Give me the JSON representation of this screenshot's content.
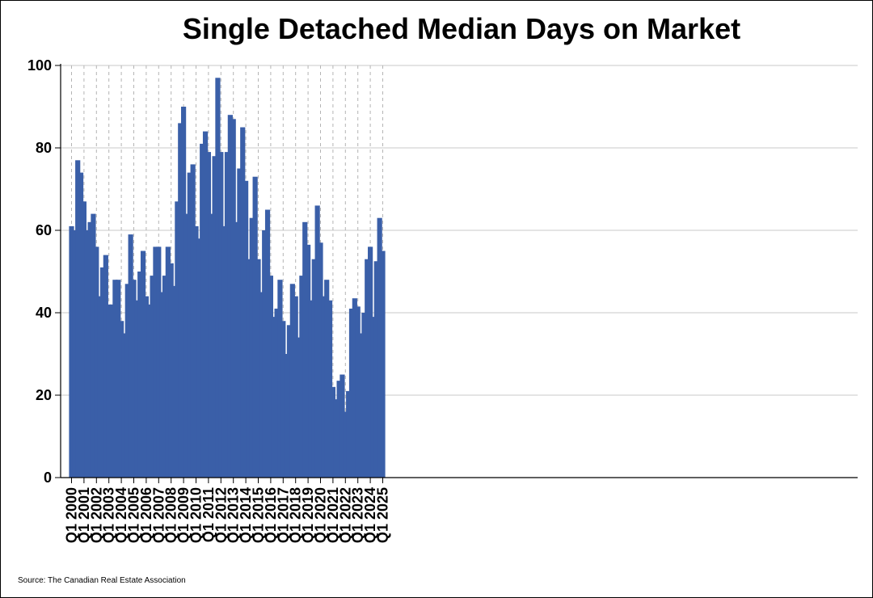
{
  "chart_data": {
    "type": "bar",
    "title": "Single Detached Median Days on Market",
    "xlabel": "",
    "ylabel": "",
    "ylim": [
      0,
      100
    ],
    "yticks": [
      0,
      20,
      40,
      60,
      80,
      100
    ],
    "grid": true,
    "bar_color": "#3a5fa8",
    "categories": [
      "Q1 2000",
      "Q2 2000",
      "Q3 2000",
      "Q4 2000",
      "Q1 2001",
      "Q2 2001",
      "Q3 2001",
      "Q4 2001",
      "Q1 2002",
      "Q2 2002",
      "Q3 2002",
      "Q4 2002",
      "Q1 2003",
      "Q2 2003",
      "Q3 2003",
      "Q4 2003",
      "Q1 2004",
      "Q2 2004",
      "Q3 2004",
      "Q4 2004",
      "Q1 2005",
      "Q2 2005",
      "Q3 2005",
      "Q4 2005",
      "Q1 2006",
      "Q2 2006",
      "Q3 2006",
      "Q4 2006",
      "Q1 2007",
      "Q2 2007",
      "Q3 2007",
      "Q4 2007",
      "Q1 2008",
      "Q2 2008",
      "Q3 2008",
      "Q4 2008",
      "Q1 2009",
      "Q2 2009",
      "Q3 2009",
      "Q4 2009",
      "Q1 2010",
      "Q2 2010",
      "Q3 2010",
      "Q4 2010",
      "Q1 2011",
      "Q2 2011",
      "Q3 2011",
      "Q4 2011",
      "Q1 2012",
      "Q2 2012",
      "Q3 2012",
      "Q4 2012",
      "Q1 2013",
      "Q2 2013",
      "Q3 2013",
      "Q4 2013",
      "Q1 2014",
      "Q2 2014",
      "Q3 2014",
      "Q4 2014",
      "Q1 2015",
      "Q2 2015",
      "Q3 2015",
      "Q4 2015",
      "Q1 2016",
      "Q2 2016",
      "Q3 2016",
      "Q4 2016",
      "Q1 2017",
      "Q2 2017",
      "Q3 2017",
      "Q4 2017",
      "Q1 2018",
      "Q2 2018",
      "Q3 2018",
      "Q4 2018",
      "Q1 2019",
      "Q2 2019",
      "Q3 2019",
      "Q4 2019",
      "Q1 2020",
      "Q2 2020",
      "Q3 2020",
      "Q4 2020",
      "Q1 2021",
      "Q2 2021",
      "Q3 2021",
      "Q4 2021",
      "Q1 2022",
      "Q2 2022",
      "Q3 2022",
      "Q4 2022",
      "Q1 2023",
      "Q2 2023",
      "Q3 2023",
      "Q4 2023",
      "Q1 2024",
      "Q2 2024",
      "Q3 2024",
      "Q4 2024",
      "Q1 2025"
    ],
    "xtick_labels": [
      "Q1 2000",
      "Q1 2001",
      "Q1 2002",
      "Q1 2003",
      "Q1 2004",
      "Q1 2005",
      "Q1 2006",
      "Q1 2007",
      "Q1 2008",
      "Q1 2009",
      "Q1 2010",
      "Q1 2011",
      "Q1 2012",
      "Q1 2013",
      "Q1 2014",
      "Q1 2015",
      "Q1 2016",
      "Q1 2017",
      "Q1 2018",
      "Q1 2019",
      "Q1 2020",
      "Q1 2021",
      "Q1 2022",
      "Q1 2023",
      "Q1 2024",
      "Q1 2025"
    ],
    "values": [
      61,
      60,
      77,
      74,
      67,
      60,
      62,
      64,
      56,
      44,
      51,
      54,
      42,
      42,
      48,
      48,
      38,
      35,
      47,
      59,
      48,
      43,
      50,
      55,
      44,
      42,
      49,
      56,
      56,
      45,
      49,
      56,
      52,
      46.5,
      67,
      86,
      90,
      64,
      74,
      76,
      61,
      58,
      81,
      84,
      79,
      64,
      78,
      97,
      79,
      61,
      79,
      88,
      87,
      62,
      75,
      85,
      72,
      53,
      63,
      73,
      53,
      45,
      60,
      65,
      49,
      39,
      41,
      48,
      38,
      30,
      37,
      47,
      44,
      34,
      49,
      62,
      56.5,
      43,
      53,
      66,
      57,
      44,
      48,
      43,
      22,
      19,
      23.5,
      25,
      16,
      21,
      41,
      43.5,
      41.5,
      35,
      40,
      53,
      56,
      39,
      52.5,
      63,
      55
    ]
  },
  "source": "Source: The Canadian Real Estate Association"
}
